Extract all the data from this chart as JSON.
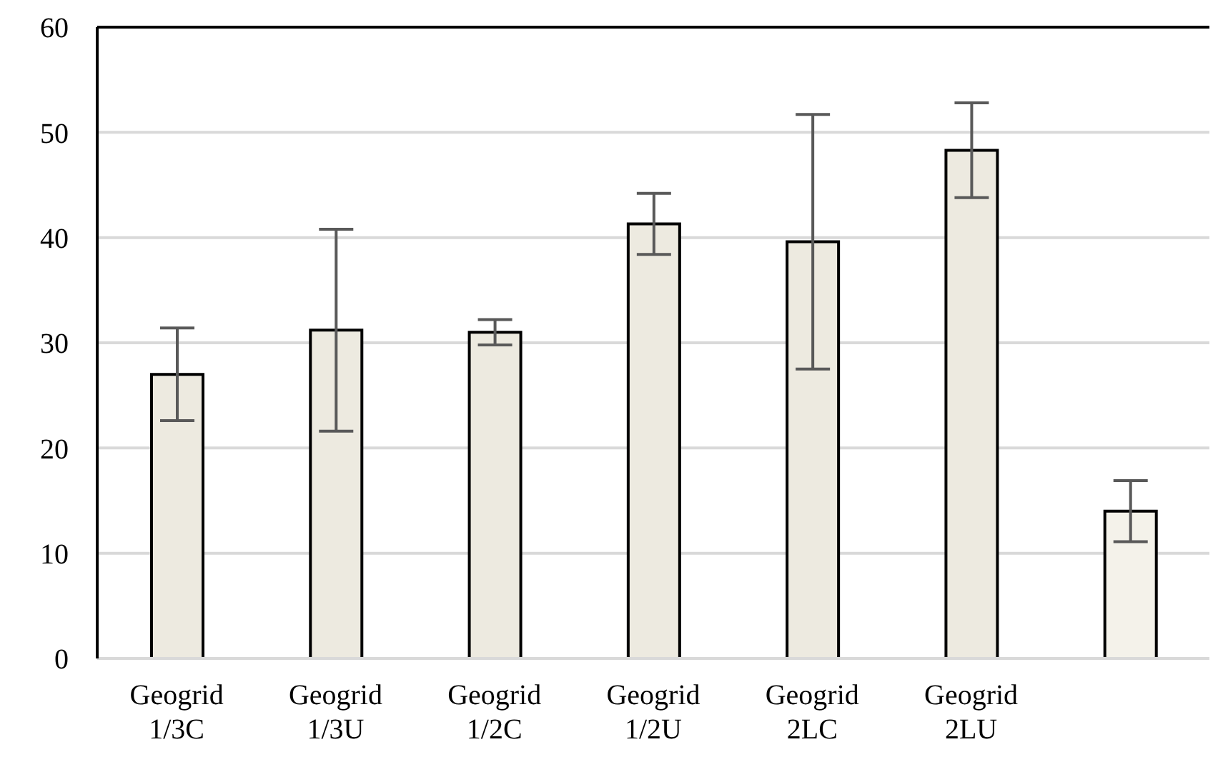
{
  "chart_data": {
    "type": "bar",
    "categories": [
      "Geogrid 1/3C",
      "Geogrid 1/3U",
      "Geogrid 1/2C",
      "Geogrid 1/2U",
      "Geogrid 2LC",
      "Geogrid 2LU",
      null
    ],
    "values": [
      27.0,
      31.2,
      31.0,
      41.3,
      39.6,
      48.3,
      14.0
    ],
    "errors": [
      4.4,
      9.6,
      1.2,
      2.9,
      12.1,
      4.5,
      2.9
    ],
    "colors": [
      "#edeae0",
      "#edeae0",
      "#edeae0",
      "#edeae0",
      "#edeae0",
      "#edeae0",
      "#f4f2ea"
    ],
    "ylim": [
      0,
      60
    ],
    "yticks": [
      0,
      10,
      20,
      30,
      40,
      50,
      60
    ],
    "grid": "y"
  }
}
